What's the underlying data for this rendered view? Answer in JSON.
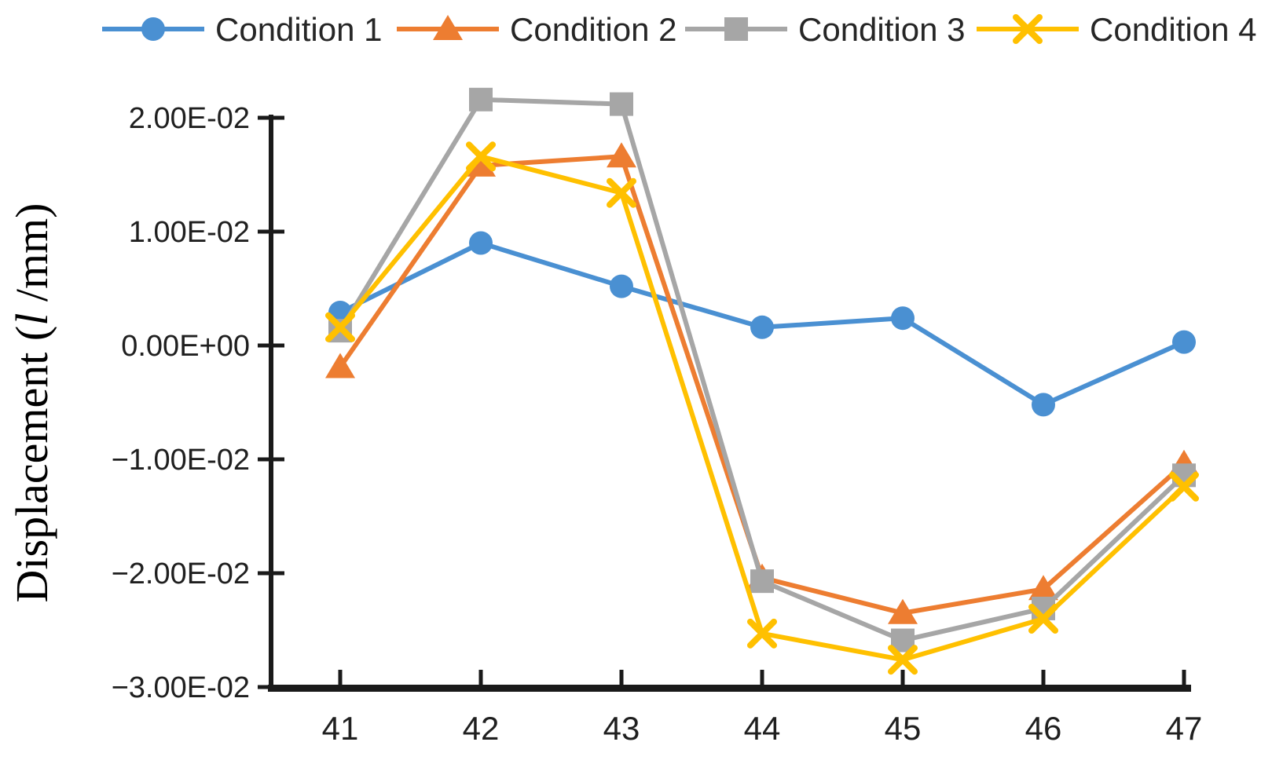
{
  "chart_data": {
    "type": "line",
    "title": "",
    "xlabel": "",
    "ylabel_prefix": "Displacement (",
    "ylabel_italic": "l",
    "ylabel_suffix": " /mm)",
    "x_categories": [
      "41",
      "42",
      "43",
      "44",
      "45",
      "46",
      "47"
    ],
    "y_ticks": [
      {
        "value": 0.02,
        "label": "2.00E-02"
      },
      {
        "value": 0.01,
        "label": "1.00E-02"
      },
      {
        "value": 0.0,
        "label": "0.00E+00"
      },
      {
        "value": -0.01,
        "label": "−1.00E-02"
      },
      {
        "value": -0.02,
        "label": "−2.00E-02"
      },
      {
        "value": -0.03,
        "label": "−3.00E-02"
      }
    ],
    "ylim": [
      -0.03,
      0.022
    ],
    "grid": false,
    "legend_position": "top",
    "axis_color": "#1a1a1a",
    "text_color": "#1f1f1f",
    "series": [
      {
        "name": "Condition 1",
        "color": "#4A90D2",
        "marker": "circle",
        "values": [
          0.0029,
          0.009,
          0.0052,
          0.0016,
          0.0024,
          -0.0052,
          0.0003
        ]
      },
      {
        "name": "Condition 2",
        "color": "#ED7D31",
        "marker": "triangle",
        "values": [
          -0.0019,
          0.0158,
          0.0166,
          -0.0204,
          -0.0235,
          -0.0214,
          -0.0104
        ]
      },
      {
        "name": "Condition 3",
        "color": "#A6A6A6",
        "marker": "square",
        "values": [
          0.0013,
          0.0216,
          0.0212,
          -0.0207,
          -0.0259,
          -0.0231,
          -0.0114
        ]
      },
      {
        "name": "Condition 4",
        "color": "#FFC000",
        "marker": "x",
        "values": [
          0.0016,
          0.0166,
          0.0134,
          -0.0253,
          -0.0276,
          -0.024,
          -0.0124
        ]
      }
    ]
  }
}
